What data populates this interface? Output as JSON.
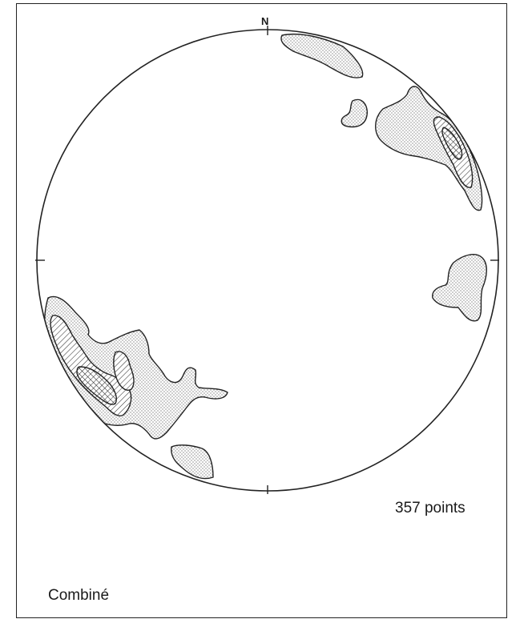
{
  "figure": {
    "north": "N",
    "point_count": "357 points",
    "dataset": "Combiné"
  },
  "colors": {
    "line": "#222222",
    "stipple": "#555555",
    "background": "#ffffff"
  },
  "legend_shading": [
    "stippled",
    "hatched",
    "cross-hatched"
  ]
}
